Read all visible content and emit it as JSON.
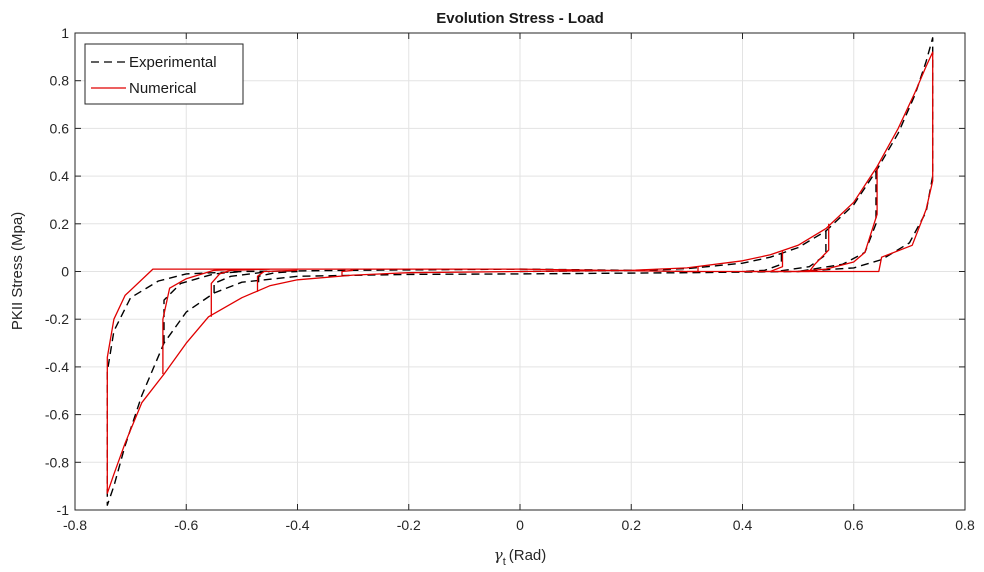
{
  "chart_data": {
    "type": "line",
    "title": "Evolution Stress - Load",
    "xlabel_symbol": "γ",
    "xlabel_subscript": "t",
    "xlabel_unit": "(Rad)",
    "ylabel": "PKII Stress (Mpa)",
    "xlim": [
      -0.8,
      0.8
    ],
    "ylim": [
      -1,
      1
    ],
    "xticks": [
      -0.8,
      -0.6,
      -0.4,
      -0.2,
      0,
      0.2,
      0.4,
      0.6,
      0.8
    ],
    "yticks": [
      -1,
      -0.8,
      -0.6,
      -0.4,
      -0.2,
      0,
      0.2,
      0.4,
      0.6,
      0.8,
      1
    ],
    "xtick_labels": [
      "-0.8",
      "-0.6",
      "-0.4",
      "-0.2",
      "0",
      "0.2",
      "0.4",
      "0.6",
      "0.8"
    ],
    "ytick_labels": [
      "-1",
      "-0.8",
      "-0.6",
      "-0.4",
      "-0.2",
      "0",
      "0.2",
      "0.4",
      "0.6",
      "0.8",
      "1"
    ],
    "grid": true,
    "legend_position": "top-left",
    "series": [
      {
        "name": "Experimental",
        "color": "#000000",
        "style": "dashed",
        "segments": [
          [
            [
              0.0,
              0.0
            ],
            [
              0.2,
              0.004
            ],
            [
              0.3,
              0.012
            ],
            [
              0.4,
              0.035
            ],
            [
              0.45,
              0.06
            ],
            [
              0.5,
              0.1
            ],
            [
              0.55,
              0.17
            ],
            [
              0.6,
              0.28
            ],
            [
              0.64,
              0.42
            ],
            [
              0.68,
              0.58
            ],
            [
              0.71,
              0.74
            ],
            [
              0.73,
              0.88
            ],
            [
              0.742,
              0.98
            ],
            [
              0.742,
              0.4
            ],
            [
              0.73,
              0.25
            ],
            [
              0.7,
              0.12
            ],
            [
              0.65,
              0.05
            ],
            [
              0.6,
              0.015
            ],
            [
              0.5,
              0.0
            ],
            [
              0.3,
              -0.005
            ],
            [
              0.0,
              -0.01
            ],
            [
              -0.2,
              -0.012
            ],
            [
              -0.4,
              -0.02
            ],
            [
              -0.5,
              -0.045
            ],
            [
              -0.55,
              -0.09
            ],
            [
              -0.6,
              -0.17
            ],
            [
              -0.64,
              -0.3
            ],
            [
              -0.68,
              -0.52
            ],
            [
              -0.71,
              -0.73
            ],
            [
              -0.73,
              -0.9
            ],
            [
              -0.742,
              -0.98
            ],
            [
              -0.742,
              -0.42
            ],
            [
              -0.73,
              -0.25
            ],
            [
              -0.7,
              -0.11
            ],
            [
              -0.65,
              -0.04
            ],
            [
              -0.6,
              -0.01
            ],
            [
              -0.5,
              0.0
            ],
            [
              -0.3,
              0.005
            ],
            [
              0.0,
              0.01
            ],
            [
              0.2,
              0.005
            ],
            [
              0.3,
              0.0
            ]
          ],
          [
            [
              0.64,
              0.42
            ],
            [
              0.64,
              0.2
            ],
            [
              0.62,
              0.08
            ],
            [
              0.58,
              0.03
            ],
            [
              0.5,
              0.0
            ]
          ],
          [
            [
              0.55,
              0.17
            ],
            [
              0.55,
              0.07
            ],
            [
              0.52,
              0.02
            ],
            [
              0.46,
              0.0
            ]
          ],
          [
            [
              0.47,
              0.075
            ],
            [
              0.47,
              0.03
            ],
            [
              0.44,
              0.005
            ],
            [
              0.4,
              0.0
            ]
          ],
          [
            [
              -0.64,
              -0.3
            ],
            [
              -0.64,
              -0.12
            ],
            [
              -0.61,
              -0.05
            ],
            [
              -0.55,
              -0.01
            ],
            [
              -0.5,
              0.0
            ]
          ],
          [
            [
              -0.55,
              -0.09
            ],
            [
              -0.55,
              -0.05
            ],
            [
              -0.52,
              -0.02
            ],
            [
              -0.45,
              0.0
            ]
          ],
          [
            [
              -0.47,
              -0.045
            ],
            [
              -0.47,
              -0.02
            ],
            [
              -0.44,
              -0.005
            ],
            [
              -0.4,
              0.0
            ]
          ]
        ]
      },
      {
        "name": "Numerical",
        "color": "#e00000",
        "style": "solid",
        "segments": [
          [
            [
              0.0,
              0.0
            ],
            [
              0.2,
              0.005
            ],
            [
              0.3,
              0.015
            ],
            [
              0.4,
              0.045
            ],
            [
              0.45,
              0.07
            ],
            [
              0.5,
              0.11
            ],
            [
              0.55,
              0.18
            ],
            [
              0.6,
              0.29
            ],
            [
              0.642,
              0.44
            ],
            [
              0.68,
              0.6
            ],
            [
              0.71,
              0.75
            ],
            [
              0.73,
              0.86
            ],
            [
              0.742,
              0.92
            ],
            [
              0.742,
              0.38
            ],
            [
              0.73,
              0.26
            ],
            [
              0.705,
              0.11
            ],
            [
              0.65,
              0.06
            ],
            [
              0.645,
              0.0
            ],
            [
              0.5,
              0.0
            ],
            [
              0.3,
              0.0
            ],
            [
              0.0,
              0.01
            ],
            [
              -0.3,
              0.01
            ],
            [
              -0.5,
              0.01
            ],
            [
              -0.6,
              0.01
            ],
            [
              -0.66,
              0.01
            ],
            [
              -0.71,
              -0.1
            ],
            [
              -0.73,
              -0.2
            ],
            [
              -0.742,
              -0.36
            ],
            [
              -0.742,
              -0.93
            ],
            [
              -0.73,
              -0.85
            ],
            [
              -0.71,
              -0.72
            ],
            [
              -0.68,
              -0.55
            ],
            [
              -0.64,
              -0.43
            ],
            [
              -0.6,
              -0.3
            ],
            [
              -0.56,
              -0.19
            ],
            [
              -0.5,
              -0.11
            ],
            [
              -0.45,
              -0.06
            ],
            [
              -0.4,
              -0.035
            ],
            [
              -0.3,
              -0.015
            ],
            [
              -0.2,
              -0.005
            ],
            [
              0.0,
              0.0
            ]
          ],
          [
            [
              0.642,
              0.44
            ],
            [
              0.642,
              0.24
            ],
            [
              0.62,
              0.08
            ],
            [
              0.6,
              0.04
            ],
            [
              0.55,
              0.01
            ],
            [
              0.5,
              0.0
            ]
          ],
          [
            [
              0.555,
              0.2
            ],
            [
              0.555,
              0.09
            ],
            [
              0.53,
              0.03
            ],
            [
              0.52,
              0.0
            ],
            [
              0.46,
              0.0
            ]
          ],
          [
            [
              0.472,
              0.085
            ],
            [
              0.472,
              0.02
            ],
            [
              0.45,
              0.0
            ],
            [
              0.4,
              0.0
            ]
          ],
          [
            [
              0.32,
              0.02
            ],
            [
              0.32,
              0.0
            ],
            [
              0.3,
              0.0
            ]
          ],
          [
            [
              -0.642,
              -0.43
            ],
            [
              -0.642,
              -0.2
            ],
            [
              -0.63,
              -0.07
            ],
            [
              -0.6,
              -0.03
            ],
            [
              -0.55,
              0.005
            ],
            [
              -0.5,
              0.01
            ]
          ],
          [
            [
              -0.555,
              -0.19
            ],
            [
              -0.555,
              -0.05
            ],
            [
              -0.54,
              -0.01
            ],
            [
              -0.52,
              0.005
            ],
            [
              -0.45,
              0.01
            ]
          ],
          [
            [
              -0.472,
              -0.085
            ],
            [
              -0.472,
              -0.02
            ],
            [
              -0.46,
              0.0
            ],
            [
              -0.4,
              0.005
            ]
          ],
          [
            [
              -0.32,
              -0.015
            ],
            [
              -0.32,
              0.0
            ],
            [
              -0.3,
              0.005
            ]
          ]
        ]
      }
    ]
  }
}
